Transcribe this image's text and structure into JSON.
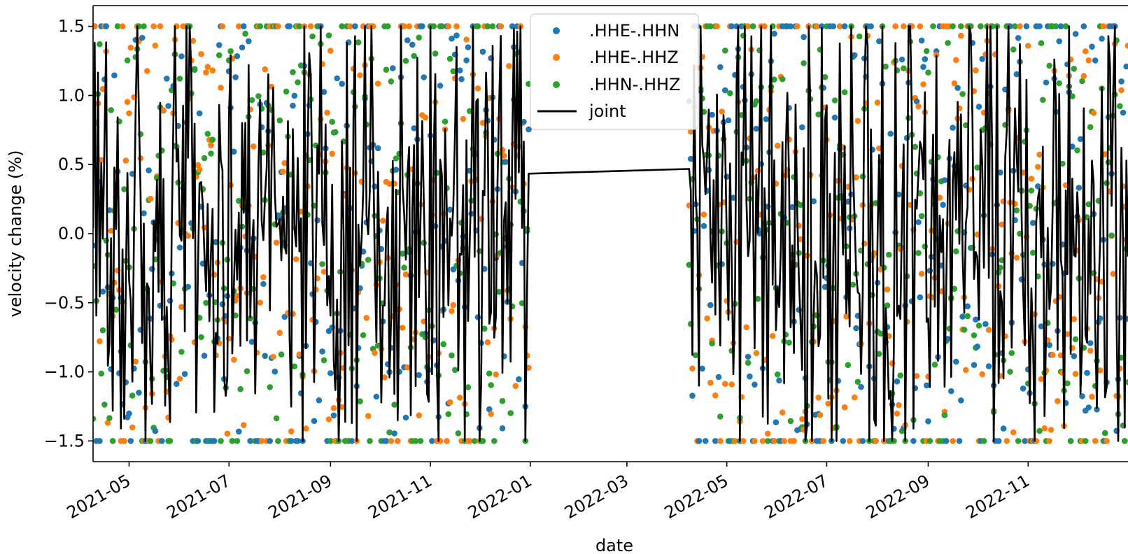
{
  "chart_data": {
    "type": "scatter",
    "xlabel": "date",
    "ylabel": "velocity change (%)",
    "xlim": [
      "2021-04-09",
      "2023-01-01"
    ],
    "ylim": [
      -1.65,
      1.65
    ],
    "x_ticks": [
      "2021-05",
      "2021-07",
      "2021-09",
      "2021-11",
      "2022-01",
      "2022-03",
      "2022-05",
      "2022-07",
      "2022-09",
      "2022-11"
    ],
    "y_ticks": [
      -1.5,
      -1.0,
      -0.5,
      0.0,
      0.5,
      1.0,
      1.5
    ],
    "y_tick_labels": [
      "−1.5",
      "−1.0",
      "−0.5",
      "0.0",
      "0.5",
      "1.0",
      "1.5"
    ],
    "clip_value": 1.5,
    "legend_position": "top-center",
    "grid": false,
    "date_ranges": [
      {
        "start": "2021-04-09",
        "end": "2021-12-31"
      },
      {
        "start": "2022-04-08",
        "end": "2023-01-01"
      }
    ],
    "series": [
      {
        "name": ".HHE-.HHN",
        "kind": "scatter",
        "color": "#1f77b4"
      },
      {
        "name": ".HHE-.HHZ",
        "kind": "scatter",
        "color": "#ff7f0e"
      },
      {
        "name": ".HHN-.HHZ",
        "kind": "scatter",
        "color": "#2ca02c"
      },
      {
        "name": "joint",
        "kind": "line",
        "color": "#000000"
      }
    ]
  }
}
